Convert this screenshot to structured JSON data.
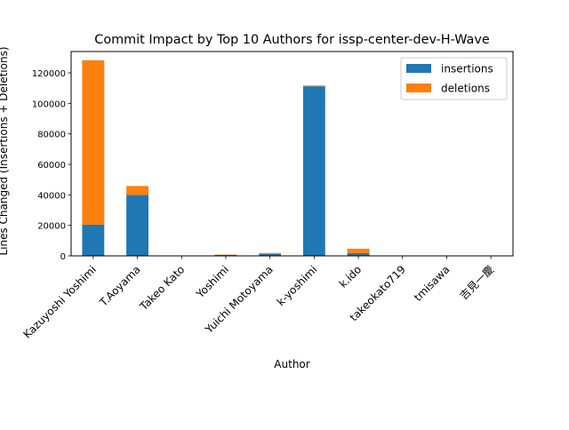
{
  "chart_data": {
    "type": "bar",
    "stacked": true,
    "title": "Commit Impact by Top 10 Authors for issp-center-dev-H-Wave",
    "xlabel": "Author",
    "ylabel": "Lines Changed (Insertions + Deletions)",
    "categories": [
      "Kazuyoshi Yoshimi",
      "T.Aoyama",
      "Takeo Kato",
      "Yoshimi",
      "Yuichi Motoyama",
      "k-yoshimi",
      "k.ido",
      "takeokato719",
      "tmisawa",
      "吉見一慶"
    ],
    "series": [
      {
        "name": "insertions",
        "color": "#1f77b4",
        "values": [
          20500,
          40000,
          150,
          600,
          1200,
          111200,
          1800,
          80,
          50,
          30
        ]
      },
      {
        "name": "deletions",
        "color": "#ff7f0e",
        "values": [
          107800,
          5800,
          50,
          200,
          700,
          500,
          2900,
          30,
          20,
          10
        ]
      }
    ],
    "ylim": [
      0,
      134000
    ],
    "yticks": [
      0,
      20000,
      40000,
      60000,
      80000,
      100000,
      120000
    ],
    "legend_position": "upper-right",
    "grid": false
  }
}
